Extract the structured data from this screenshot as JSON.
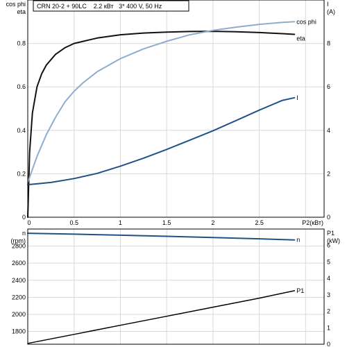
{
  "header": {
    "text": "CRN 20-2 + 90LC    2.2 кВт   3* 400 V, 50 Hz"
  },
  "colors": {
    "eta": "#111111",
    "cos_phi": "#8eaccb",
    "current": "#1f5185",
    "speed": "#1f5185",
    "p1": "#000000"
  },
  "chart_data": [
    {
      "type": "line",
      "title": "",
      "xlabel": "P2(кВт)",
      "xlim": [
        0,
        3.2
      ],
      "x_ticks": [
        0,
        0.5,
        1,
        1.5,
        2,
        2.5
      ],
      "grid": true,
      "left_axis": {
        "labels": [
          "cos phi",
          "eta"
        ],
        "ylim": [
          0,
          1.0
        ],
        "ticks": [
          0,
          0.2,
          0.4,
          0.6,
          0.8
        ]
      },
      "right_axis": {
        "labels": [
          "I",
          "(A)"
        ],
        "ylim": [
          0,
          10
        ],
        "ticks": [
          0,
          2,
          4,
          6,
          8
        ]
      },
      "series": [
        {
          "name": "eta",
          "axis": "left",
          "color_key": "eta",
          "x": [
            0,
            0.02,
            0.05,
            0.1,
            0.15,
            0.2,
            0.3,
            0.4,
            0.5,
            0.6,
            0.75,
            1.0,
            1.25,
            1.5,
            1.75,
            2.0,
            2.25,
            2.5,
            2.75,
            2.88
          ],
          "y": [
            0,
            0.3,
            0.48,
            0.6,
            0.66,
            0.7,
            0.75,
            0.78,
            0.8,
            0.81,
            0.825,
            0.84,
            0.848,
            0.852,
            0.855,
            0.856,
            0.854,
            0.85,
            0.845,
            0.842
          ]
        },
        {
          "name": "cos phi",
          "axis": "left",
          "color_key": "cos_phi",
          "x": [
            0,
            0.05,
            0.1,
            0.2,
            0.3,
            0.4,
            0.5,
            0.6,
            0.75,
            1.0,
            1.25,
            1.5,
            1.75,
            2.0,
            2.25,
            2.5,
            2.75,
            2.88
          ],
          "y": [
            0.16,
            0.22,
            0.28,
            0.38,
            0.46,
            0.53,
            0.58,
            0.62,
            0.67,
            0.73,
            0.775,
            0.81,
            0.84,
            0.86,
            0.875,
            0.888,
            0.897,
            0.9
          ]
        },
        {
          "name": "I",
          "axis": "right",
          "color_key": "current",
          "x": [
            0,
            0.25,
            0.5,
            0.75,
            1.0,
            1.25,
            1.5,
            1.75,
            2.0,
            2.25,
            2.5,
            2.75,
            2.88
          ],
          "y": [
            1.5,
            1.6,
            1.78,
            2.02,
            2.35,
            2.72,
            3.12,
            3.55,
            3.98,
            4.45,
            4.93,
            5.38,
            5.5
          ]
        }
      ]
    },
    {
      "type": "line",
      "title": "",
      "xlabel": "",
      "xlim": [
        0,
        3.2
      ],
      "grid": true,
      "left_axis": {
        "labels": [
          "n",
          "(rpm)"
        ],
        "ylim": [
          1650,
          3000
        ],
        "ticks": [
          1800,
          2000,
          2200,
          2400,
          2600,
          2800
        ]
      },
      "right_axis": {
        "labels": [
          "P1",
          "(kW)"
        ],
        "ylim": [
          0,
          7
        ],
        "ticks": [
          0,
          1,
          2,
          3,
          4,
          5,
          6
        ]
      },
      "series": [
        {
          "name": "n",
          "axis": "left",
          "color_key": "speed",
          "x": [
            0,
            0.5,
            1.0,
            1.5,
            2.0,
            2.5,
            2.88
          ],
          "y": [
            2950,
            2940,
            2928,
            2915,
            2900,
            2885,
            2872
          ]
        },
        {
          "name": "P1",
          "axis": "right",
          "color_key": "p1",
          "x": [
            0,
            0.5,
            1.0,
            1.5,
            2.0,
            2.5,
            2.88
          ],
          "y": [
            0.05,
            0.6,
            1.15,
            1.7,
            2.25,
            2.8,
            3.25
          ]
        }
      ]
    }
  ]
}
